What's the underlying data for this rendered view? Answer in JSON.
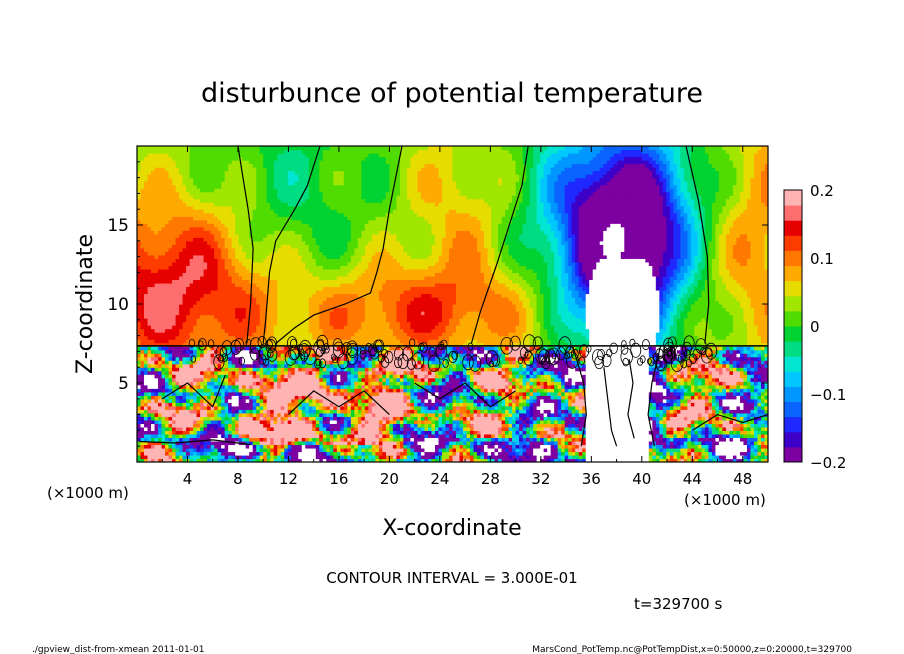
{
  "chart_data": {
    "type": "heatmap",
    "title": "disturbunce of potential temperature",
    "xlabel": "X-coordinate",
    "ylabel": "Z-coordinate",
    "x_unit_left": "(×1000 m)",
    "x_unit_right": "(×1000 m)",
    "xlim": [
      0,
      50
    ],
    "ylim": [
      0,
      20
    ],
    "x_ticks": [
      4,
      8,
      12,
      16,
      20,
      24,
      28,
      32,
      36,
      40,
      44,
      48
    ],
    "y_ticks": [
      5,
      10,
      15
    ],
    "colorbar": {
      "range": [
        -0.2,
        0.2
      ],
      "ticks": [
        {
          "value": 0.2,
          "label": "0.2"
        },
        {
          "value": 0.1,
          "label": "0.1"
        },
        {
          "value": 0.0,
          "label": "0"
        },
        {
          "value": -0.1,
          "label": "−0.1"
        },
        {
          "value": -0.2,
          "label": "−0.2"
        }
      ]
    },
    "contour_interval_text": "CONTOUR INTERVAL = 3.000E-01",
    "time_text": "t=329700 s",
    "footer_left": "./gpview_dist-from-xmean   2011-01-01",
    "footer_right": "MarsCond_PotTemp.nc@PotTempDist,x=0:50000,z=0:20000,t=329700"
  }
}
